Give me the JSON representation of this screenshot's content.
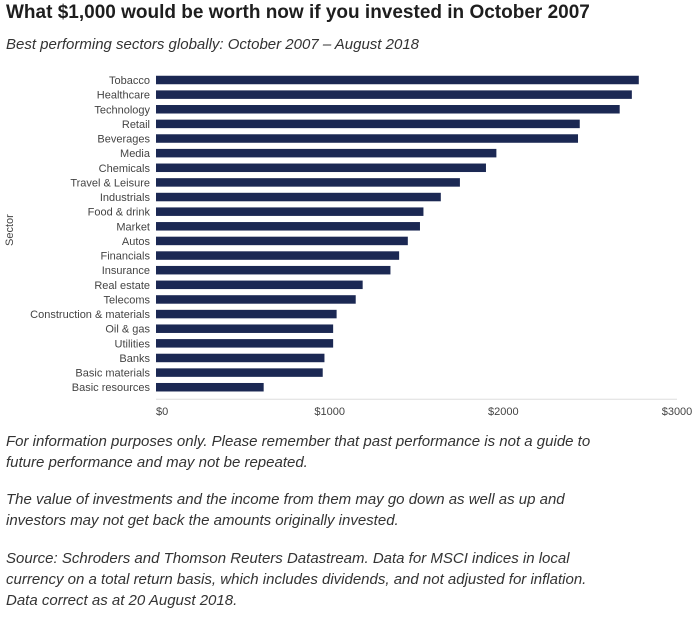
{
  "title": "What $1,000 would be worth now if you invested in October 2007",
  "subtitle": "Best performing sectors globally: October 2007 – August 2018",
  "notes": {
    "disclaimer": "For information purposes only. Please remember that past performance is not a guide to future performance and may not be repeated.",
    "risk": "The value of investments and the income from them may go down as well as up and investors may not get back the amounts originally invested.",
    "source": "Source: Schroders and Thomson Reuters Datastream. Data for MSCI indices in local currency on a total return basis, which includes dividends, and not adjusted for inflation. Data correct as at 20 August 2018."
  },
  "chart_data": {
    "type": "bar",
    "orientation": "horizontal",
    "ylabel": "Sector",
    "xlabel": "",
    "xlim": [
      0,
      3000
    ],
    "xticks": [
      0,
      1000,
      2000,
      3000
    ],
    "xtick_labels": [
      "$0",
      "$1000",
      "$2000",
      "$3000"
    ],
    "bar_color": "#1b2853",
    "grid": false,
    "categories": [
      "Tobacco",
      "Healthcare",
      "Technology",
      "Retail",
      "Beverages",
      "Media",
      "Chemicals",
      "Travel & Leisure",
      "Industrials",
      "Food & drink",
      "Market",
      "Autos",
      "Financials",
      "Insurance",
      "Real estate",
      "Telecoms",
      "Construction & materials",
      "Oil & gas",
      "Utilities",
      "Banks",
      "Basic materials",
      "Basic resources"
    ],
    "values": [
      2780,
      2740,
      2670,
      2440,
      2430,
      1960,
      1900,
      1750,
      1640,
      1540,
      1520,
      1450,
      1400,
      1350,
      1190,
      1150,
      1040,
      1020,
      1020,
      970,
      960,
      620
    ]
  }
}
